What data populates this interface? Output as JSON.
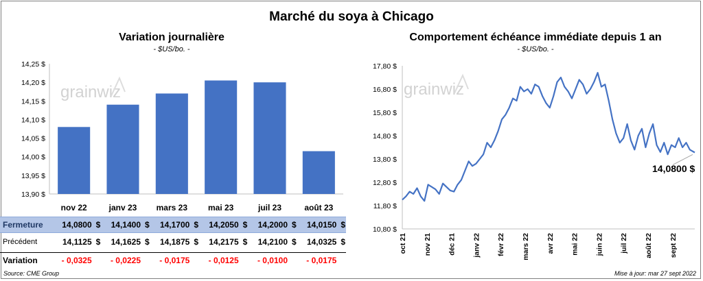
{
  "main_title": "Marché du soya à Chicago",
  "source": "Source: CME Group",
  "updated": "Mise à jour: mar 27 sept 2022",
  "watermark": "grainwiz",
  "colors": {
    "bar": "#4472c4",
    "line": "#4472c4",
    "header_row": "#b4c6e7",
    "negative": "#ff0000"
  },
  "left_chart": {
    "title": "Variation  journalière",
    "subtitle": "- $US/bo. -"
  },
  "right_chart": {
    "title": "Comportement  échéance immédiate depuis 1 an",
    "subtitle": "- $US/bo. -",
    "last_value_label": "14,0800 $"
  },
  "table": {
    "currency": "$",
    "rows": [
      {
        "label": "Fermeture",
        "values": [
          "14,0800",
          "14,1400",
          "14,1700",
          "14,2050",
          "14,2000",
          "14,0150"
        ]
      },
      {
        "label": "Précédent",
        "values": [
          "14,1125",
          "14,1625",
          "14,1875",
          "14,2175",
          "14,2100",
          "14,0325"
        ]
      },
      {
        "label": "Variation",
        "values": [
          "- 0,0325",
          "- 0,0225",
          "- 0,0175",
          "- 0,0125",
          "- 0,0100",
          "- 0,0175"
        ]
      }
    ]
  },
  "chart_data": [
    {
      "type": "bar",
      "title": "Variation  journalière",
      "subtitle": "- $US/bo. -",
      "categories": [
        "nov 22",
        "janv 23",
        "mars 23",
        "mai 23",
        "juil 23",
        "août 23"
      ],
      "values": [
        14.08,
        14.14,
        14.17,
        14.205,
        14.2,
        14.015
      ],
      "ylim": [
        13.9,
        14.25
      ],
      "yticks": [
        13.9,
        13.95,
        14.0,
        14.05,
        14.1,
        14.15,
        14.2,
        14.25
      ],
      "ytick_labels": [
        "13,90 $",
        "13,95 $",
        "14,00 $",
        "14,05 $",
        "14,10 $",
        "14,15 $",
        "14,20 $",
        "14,25 $"
      ],
      "grid": false
    },
    {
      "type": "line",
      "title": "Comportement  échéance immédiate depuis 1 an",
      "subtitle": "- $US/bo. -",
      "ylim": [
        10.8,
        17.8
      ],
      "yticks": [
        10.8,
        11.8,
        12.8,
        13.8,
        14.8,
        15.8,
        16.8,
        17.8
      ],
      "ytick_labels": [
        "10,80 $",
        "11,80 $",
        "12,80 $",
        "13,80 $",
        "14,80 $",
        "15,80 $",
        "16,80 $",
        "17,80 $"
      ],
      "xticks": [
        "oct 21",
        "nov 21",
        "déc 21",
        "janv 22",
        "févr 22",
        "mars 22",
        "avr 22",
        "mai 22",
        "juin 22",
        "juil 22",
        "août 22",
        "sept 22"
      ],
      "xtick_positions": [
        0,
        1,
        2,
        3,
        4,
        5,
        6,
        7,
        8,
        9,
        10,
        11
      ],
      "xlim": [
        0,
        11.9
      ],
      "series": [
        {
          "x": [
            0,
            0.15,
            0.3,
            0.45,
            0.6,
            0.75,
            0.9,
            1.05,
            1.2,
            1.35,
            1.5,
            1.65,
            1.8,
            1.95,
            2.1,
            2.25,
            2.4,
            2.55,
            2.7,
            2.85,
            3.0,
            3.15,
            3.3,
            3.45,
            3.6,
            3.75,
            3.9,
            4.05,
            4.2,
            4.35,
            4.5,
            4.65,
            4.8,
            4.95,
            5.1,
            5.25,
            5.4,
            5.55,
            5.7,
            5.85,
            6.0,
            6.15,
            6.3,
            6.45,
            6.6,
            6.75,
            6.9,
            7.05,
            7.2,
            7.35,
            7.5,
            7.65,
            7.8,
            7.95,
            8.1,
            8.25,
            8.4,
            8.55,
            8.7,
            8.85,
            9.0,
            9.15,
            9.3,
            9.45,
            9.6,
            9.75,
            9.9,
            10.05,
            10.2,
            10.35,
            10.5,
            10.65,
            10.8,
            10.95,
            11.1,
            11.25,
            11.4,
            11.55,
            11.7,
            11.9
          ],
          "y": [
            12.05,
            12.2,
            12.4,
            12.3,
            12.55,
            12.2,
            12.0,
            12.7,
            12.6,
            12.5,
            12.3,
            12.75,
            12.6,
            12.45,
            12.4,
            12.7,
            12.9,
            13.3,
            13.7,
            13.5,
            13.6,
            13.8,
            14.0,
            14.5,
            14.3,
            14.6,
            15.0,
            15.5,
            15.7,
            16.0,
            16.4,
            16.3,
            16.9,
            16.7,
            16.8,
            16.6,
            17.0,
            16.9,
            16.5,
            16.2,
            16.0,
            16.5,
            17.1,
            17.3,
            16.9,
            16.7,
            16.4,
            16.8,
            17.2,
            17.0,
            16.6,
            16.8,
            17.1,
            17.5,
            16.9,
            17.0,
            16.3,
            15.5,
            14.9,
            14.5,
            14.7,
            15.3,
            14.6,
            14.2,
            14.8,
            15.1,
            14.3,
            14.9,
            15.3,
            14.4,
            14.1,
            14.5,
            14.0,
            14.4,
            14.3,
            14.7,
            14.3,
            14.5,
            14.2,
            14.08
          ]
        }
      ]
    }
  ]
}
